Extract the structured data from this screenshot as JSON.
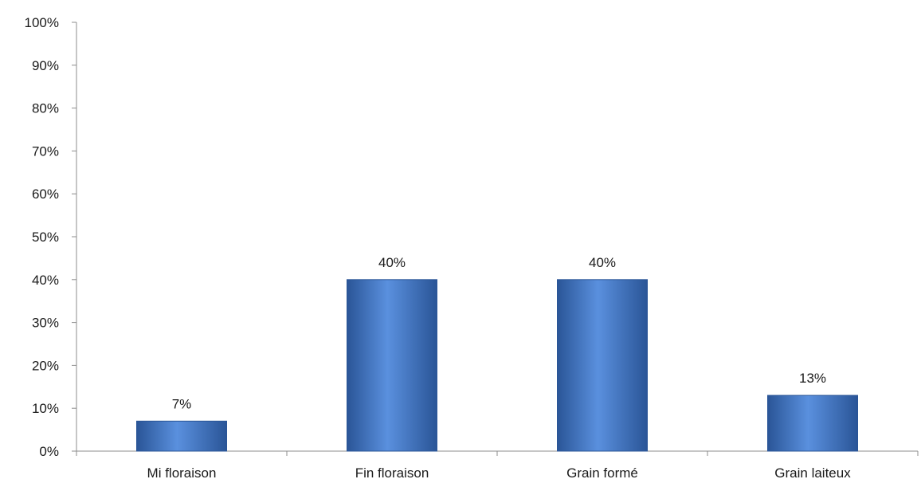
{
  "chart_data": {
    "type": "bar",
    "categories": [
      "Mi floraison",
      "Fin floraison",
      "Grain formé",
      "Grain laiteux"
    ],
    "values": [
      7,
      40,
      40,
      13
    ],
    "data_labels": [
      "7%",
      "40%",
      "40%",
      "13%"
    ],
    "title": "",
    "xlabel": "",
    "ylabel": "",
    "ylim": [
      0,
      100
    ],
    "yticks": [
      "0%",
      "10%",
      "20%",
      "30%",
      "40%",
      "50%",
      "60%",
      "70%",
      "80%",
      "90%",
      "100%"
    ],
    "grid": false,
    "legend": "none",
    "bar_color": "#3b73c8",
    "bar_color_dark": "#2a5597",
    "bar_color_light": "#5a90de"
  }
}
